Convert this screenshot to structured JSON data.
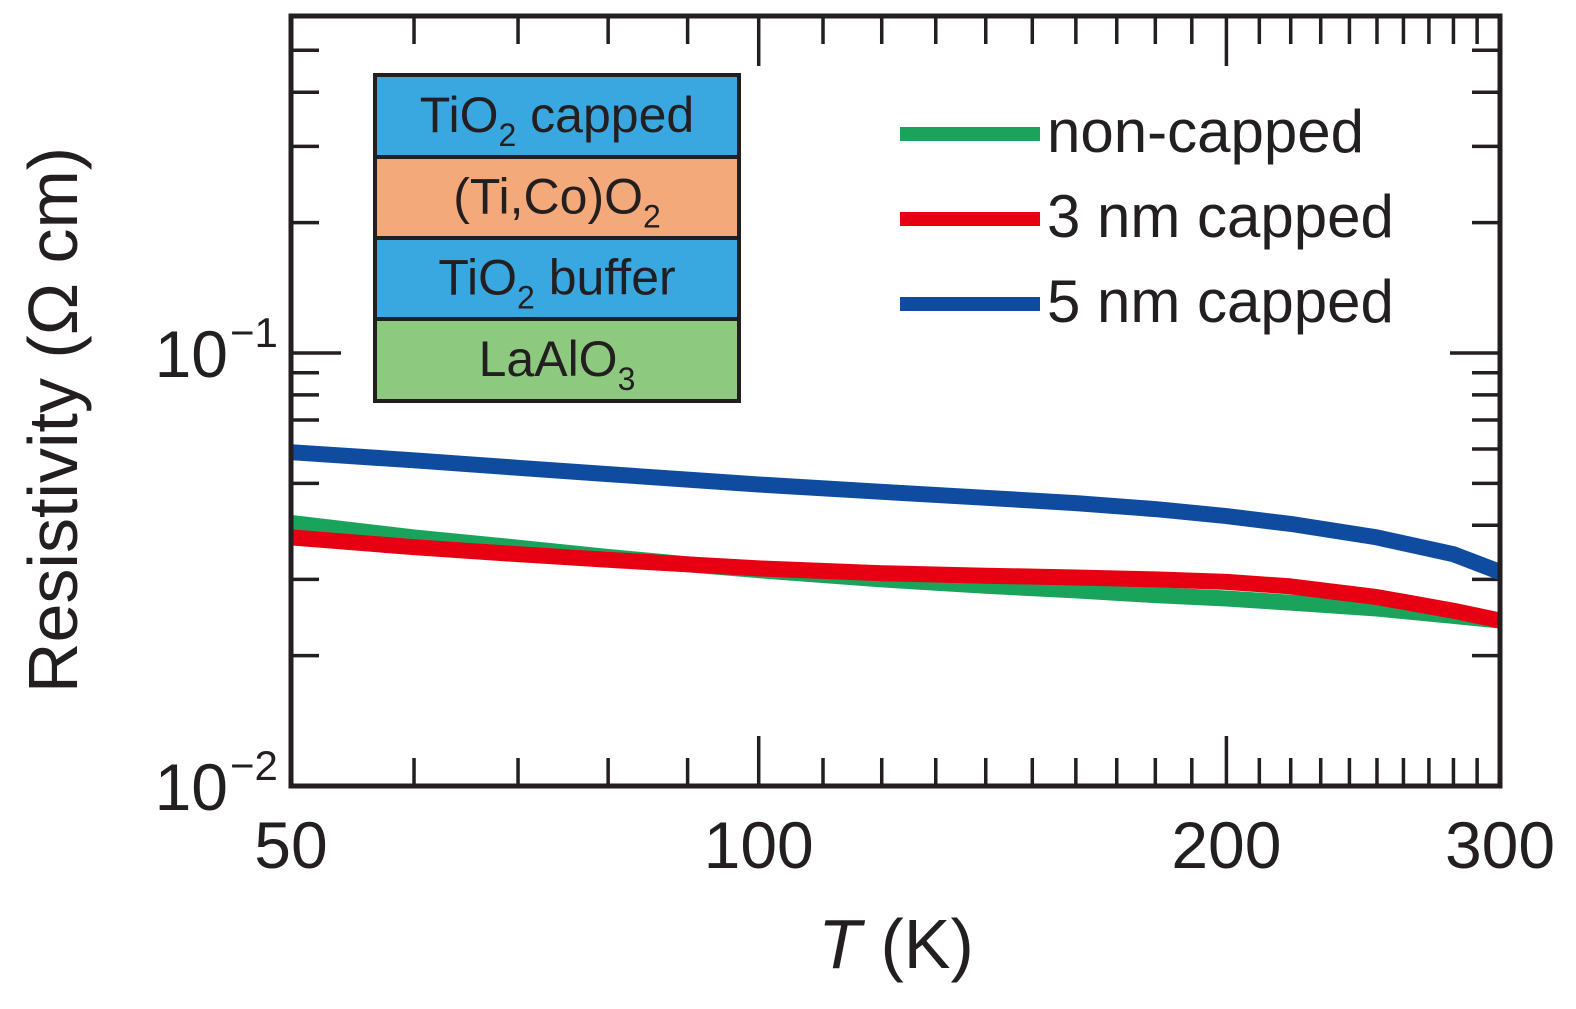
{
  "chart_data": {
    "type": "line",
    "title": "",
    "xscale": "log",
    "yscale": "log",
    "xlim": [
      50,
      300
    ],
    "ylim": [
      0.01,
      0.6
    ],
    "x_ticks": [
      {
        "value": 50,
        "label": "50"
      },
      {
        "value": 100,
        "label": "100"
      },
      {
        "value": 200,
        "label": "200"
      },
      {
        "value": 300,
        "label": "300"
      }
    ],
    "y_ticks": [
      {
        "value": 0.01,
        "base": "10",
        "exponent": "−2"
      },
      {
        "value": 0.1,
        "base": "10",
        "exponent": "−1"
      }
    ],
    "xlabel": {
      "italic": "T",
      "rest": " (K)"
    },
    "ylabel": "Resistivity (Ω cm)",
    "series": [
      {
        "name": "non-capped",
        "color": "#1aa35a",
        "x": [
          50,
          60,
          70,
          80,
          90,
          100,
          120,
          140,
          160,
          180,
          200,
          220,
          250,
          280,
          300
        ],
        "y": [
          0.0405,
          0.0375,
          0.0355,
          0.0338,
          0.0325,
          0.0315,
          0.03,
          0.029,
          0.0283,
          0.0276,
          0.0271,
          0.0265,
          0.0257,
          0.0247,
          0.0241
        ]
      },
      {
        "name": "3 nm capped",
        "color": "#e60012",
        "x": [
          50,
          60,
          70,
          80,
          90,
          100,
          120,
          140,
          160,
          180,
          200,
          220,
          250,
          280,
          300
        ],
        "y": [
          0.0375,
          0.0356,
          0.0343,
          0.0333,
          0.0325,
          0.0318,
          0.031,
          0.0306,
          0.0303,
          0.03,
          0.0296,
          0.0289,
          0.0273,
          0.0254,
          0.0241
        ]
      },
      {
        "name": "5 nm capped",
        "color": "#0f4ca0",
        "x": [
          50,
          60,
          70,
          80,
          90,
          100,
          120,
          140,
          160,
          180,
          200,
          220,
          250,
          280,
          300
        ],
        "y": [
          0.059,
          0.0565,
          0.0543,
          0.0525,
          0.051,
          0.0497,
          0.0478,
          0.0463,
          0.045,
          0.0436,
          0.042,
          0.0403,
          0.0375,
          0.0343,
          0.0312
        ]
      }
    ],
    "legend": {
      "placement": "top-right",
      "entries": [
        "non-capped",
        "3 nm capped",
        "5 nm capped"
      ]
    },
    "inset": {
      "type": "layer-stack",
      "layers": [
        {
          "base": "TiO",
          "sub": "2",
          "tail": " capped",
          "color": "#3aa8e0"
        },
        {
          "base": "(Ti,Co)O",
          "sub": "2",
          "tail": "",
          "color": "#f4a97b"
        },
        {
          "base": "TiO",
          "sub": "2",
          "tail": " buffer",
          "color": "#3aa8e0"
        },
        {
          "base": "LaAlO",
          "sub": "3",
          "tail": "",
          "color": "#8dc97f"
        }
      ]
    }
  }
}
